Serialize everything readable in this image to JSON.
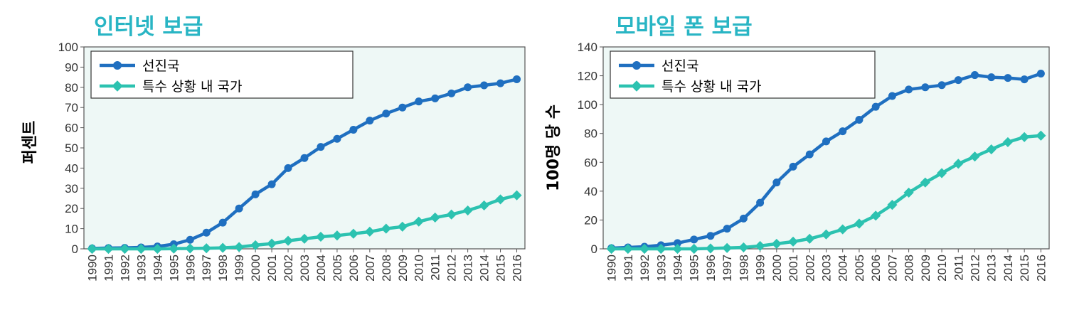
{
  "colors": {
    "title": "#29b5c4",
    "developed": "#1f6fc0",
    "fragile": "#2cc2b0",
    "plot_bg": "#eef8f6"
  },
  "chart_data": [
    {
      "type": "line",
      "title": "인터넷 보급",
      "ylabel": "퍼센트",
      "ylim": [
        0,
        100
      ],
      "yticks": [
        "0",
        "10",
        "20",
        "30",
        "40",
        "50",
        "60",
        "70",
        "80",
        "90",
        "100"
      ],
      "x": [
        "1990",
        "1991",
        "1992",
        "1993",
        "1994",
        "1995",
        "1996",
        "1997",
        "1998",
        "1999",
        "2000",
        "2001",
        "2002",
        "2003",
        "2004",
        "2005",
        "2006",
        "2007",
        "2008",
        "2009",
        "2010",
        "2011",
        "2012",
        "2013",
        "2014",
        "2015",
        "2016"
      ],
      "legend": "top-left",
      "series": [
        {
          "name": "선진국",
          "values": [
            0.2,
            0.4,
            0.5,
            0.7,
            1.2,
            2.3,
            4.5,
            8,
            13,
            20,
            27,
            32,
            40,
            45,
            50.5,
            54.5,
            59,
            63.5,
            67,
            70,
            73,
            74.5,
            77,
            80,
            81,
            82,
            84
          ]
        },
        {
          "name": "특수 상황 내 국가",
          "values": [
            0,
            0,
            0,
            0,
            0,
            0.1,
            0.2,
            0.3,
            0.5,
            0.9,
            1.8,
            2.6,
            4,
            5,
            6,
            6.6,
            7.5,
            8.5,
            10,
            11,
            13.5,
            15.5,
            17,
            19,
            21.5,
            24.5,
            26.5
          ]
        }
      ]
    },
    {
      "type": "line",
      "title": "모바일 폰 보급",
      "ylabel": "100명 당 수",
      "ylim": [
        0,
        140
      ],
      "yticks": [
        "0",
        "20",
        "40",
        "60",
        "80",
        "100",
        "120",
        "140"
      ],
      "x": [
        "1990",
        "1991",
        "1992",
        "1993",
        "1994",
        "1995",
        "1996",
        "1997",
        "1998",
        "1999",
        "2000",
        "2001",
        "2002",
        "2003",
        "2004",
        "2005",
        "2006",
        "2007",
        "2008",
        "2009",
        "2010",
        "2011",
        "2012",
        "2013",
        "2014",
        "2015",
        "2016"
      ],
      "legend": "top-left",
      "series": [
        {
          "name": "선진국",
          "values": [
            0.5,
            1,
            1.5,
            2.5,
            4,
            6.5,
            9,
            14,
            21,
            32,
            46,
            57,
            65.5,
            74.5,
            81.5,
            89.5,
            98.5,
            106,
            110.5,
            112,
            113.5,
            117,
            120.5,
            119,
            118.5,
            117.5,
            121.5
          ]
        },
        {
          "name": "특수 상황 내 국가",
          "values": [
            0,
            0,
            0,
            0,
            0,
            0,
            0.3,
            0.6,
            1,
            2,
            3.5,
            5,
            7,
            10,
            13.5,
            17.5,
            23,
            30.5,
            39,
            46,
            52.5,
            59,
            64,
            69,
            74,
            77.5,
            78.5
          ]
        }
      ]
    }
  ]
}
